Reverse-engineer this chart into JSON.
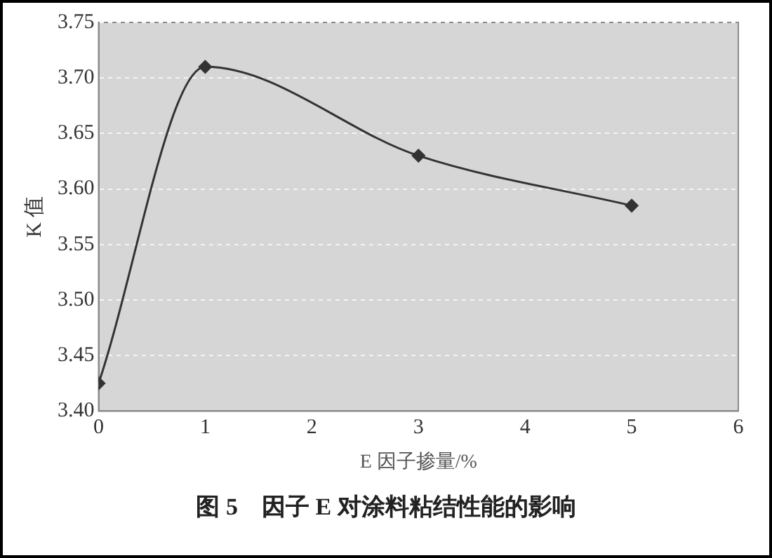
{
  "chart_data": {
    "type": "line",
    "xlabel": "E 因子掺量/%",
    "ylabel": "K 值",
    "annotations": [
      "图 5　因子 E 对涂料粘结性能的影响"
    ],
    "x": [
      0,
      1,
      3,
      5
    ],
    "series": [
      {
        "color": "#333333",
        "values": [
          3.425,
          3.71,
          3.63,
          3.585
        ]
      }
    ],
    "xlim": [
      0,
      6
    ],
    "xticks": [
      0,
      1,
      2,
      3,
      4,
      5,
      6
    ],
    "ylim": [
      3.4,
      3.75
    ],
    "yticks": [
      {
        "value": 3.4,
        "label": "3.40"
      },
      3.45,
      {
        "value": 3.5,
        "label": "3.50"
      },
      3.55,
      {
        "value": 3.6,
        "label": "3.60"
      },
      3.65,
      {
        "value": 3.7,
        "label": "3.70"
      },
      3.75
    ],
    "grid": "y",
    "legend": false,
    "marker": "diamond",
    "line_style": "solid"
  }
}
